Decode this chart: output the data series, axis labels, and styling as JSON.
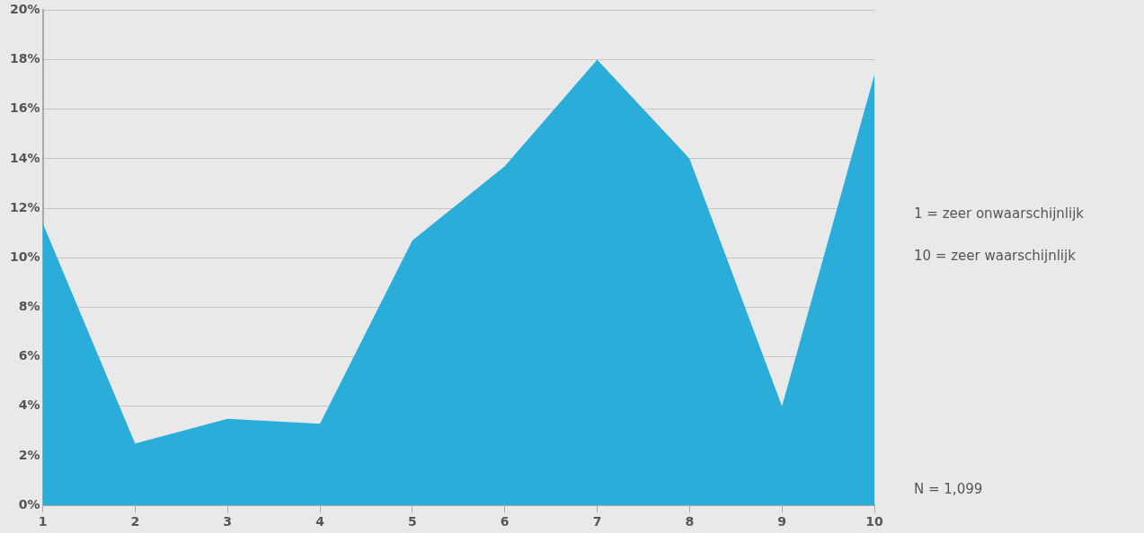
{
  "chart_data": {
    "type": "area",
    "x": [
      1,
      2,
      3,
      4,
      5,
      6,
      7,
      8,
      9,
      10
    ],
    "series": [
      {
        "color": "#2aaed9",
        "values": [
          11.4,
          2.5,
          3.5,
          3.3,
          10.7,
          13.7,
          18.0,
          14.0,
          4.0,
          17.4
        ]
      }
    ],
    "xlim": [
      1,
      10
    ],
    "xticks": [
      1,
      2,
      3,
      4,
      5,
      6,
      7,
      8,
      9,
      10
    ],
    "ylim": [
      0,
      20
    ],
    "yticks": [
      {
        "value": 0,
        "label": "0%"
      },
      {
        "value": 2,
        "label": "2%"
      },
      {
        "value": 4,
        "label": "4%"
      },
      {
        "value": 6,
        "label": "6%"
      },
      {
        "value": 8,
        "label": "8%"
      },
      {
        "value": 10,
        "label": "10%"
      },
      {
        "value": 12,
        "label": "12%"
      },
      {
        "value": 14,
        "label": "14%"
      },
      {
        "value": 16,
        "label": "16%"
      },
      {
        "value": 18,
        "label": "18%"
      },
      {
        "value": 20,
        "label": "20%"
      }
    ],
    "grid": "y",
    "legend": false,
    "annotations": [
      "1 = zeer onwaarschijnlijk",
      "10 = zeer waarschijnlijk",
      "N = 1,099"
    ]
  }
}
